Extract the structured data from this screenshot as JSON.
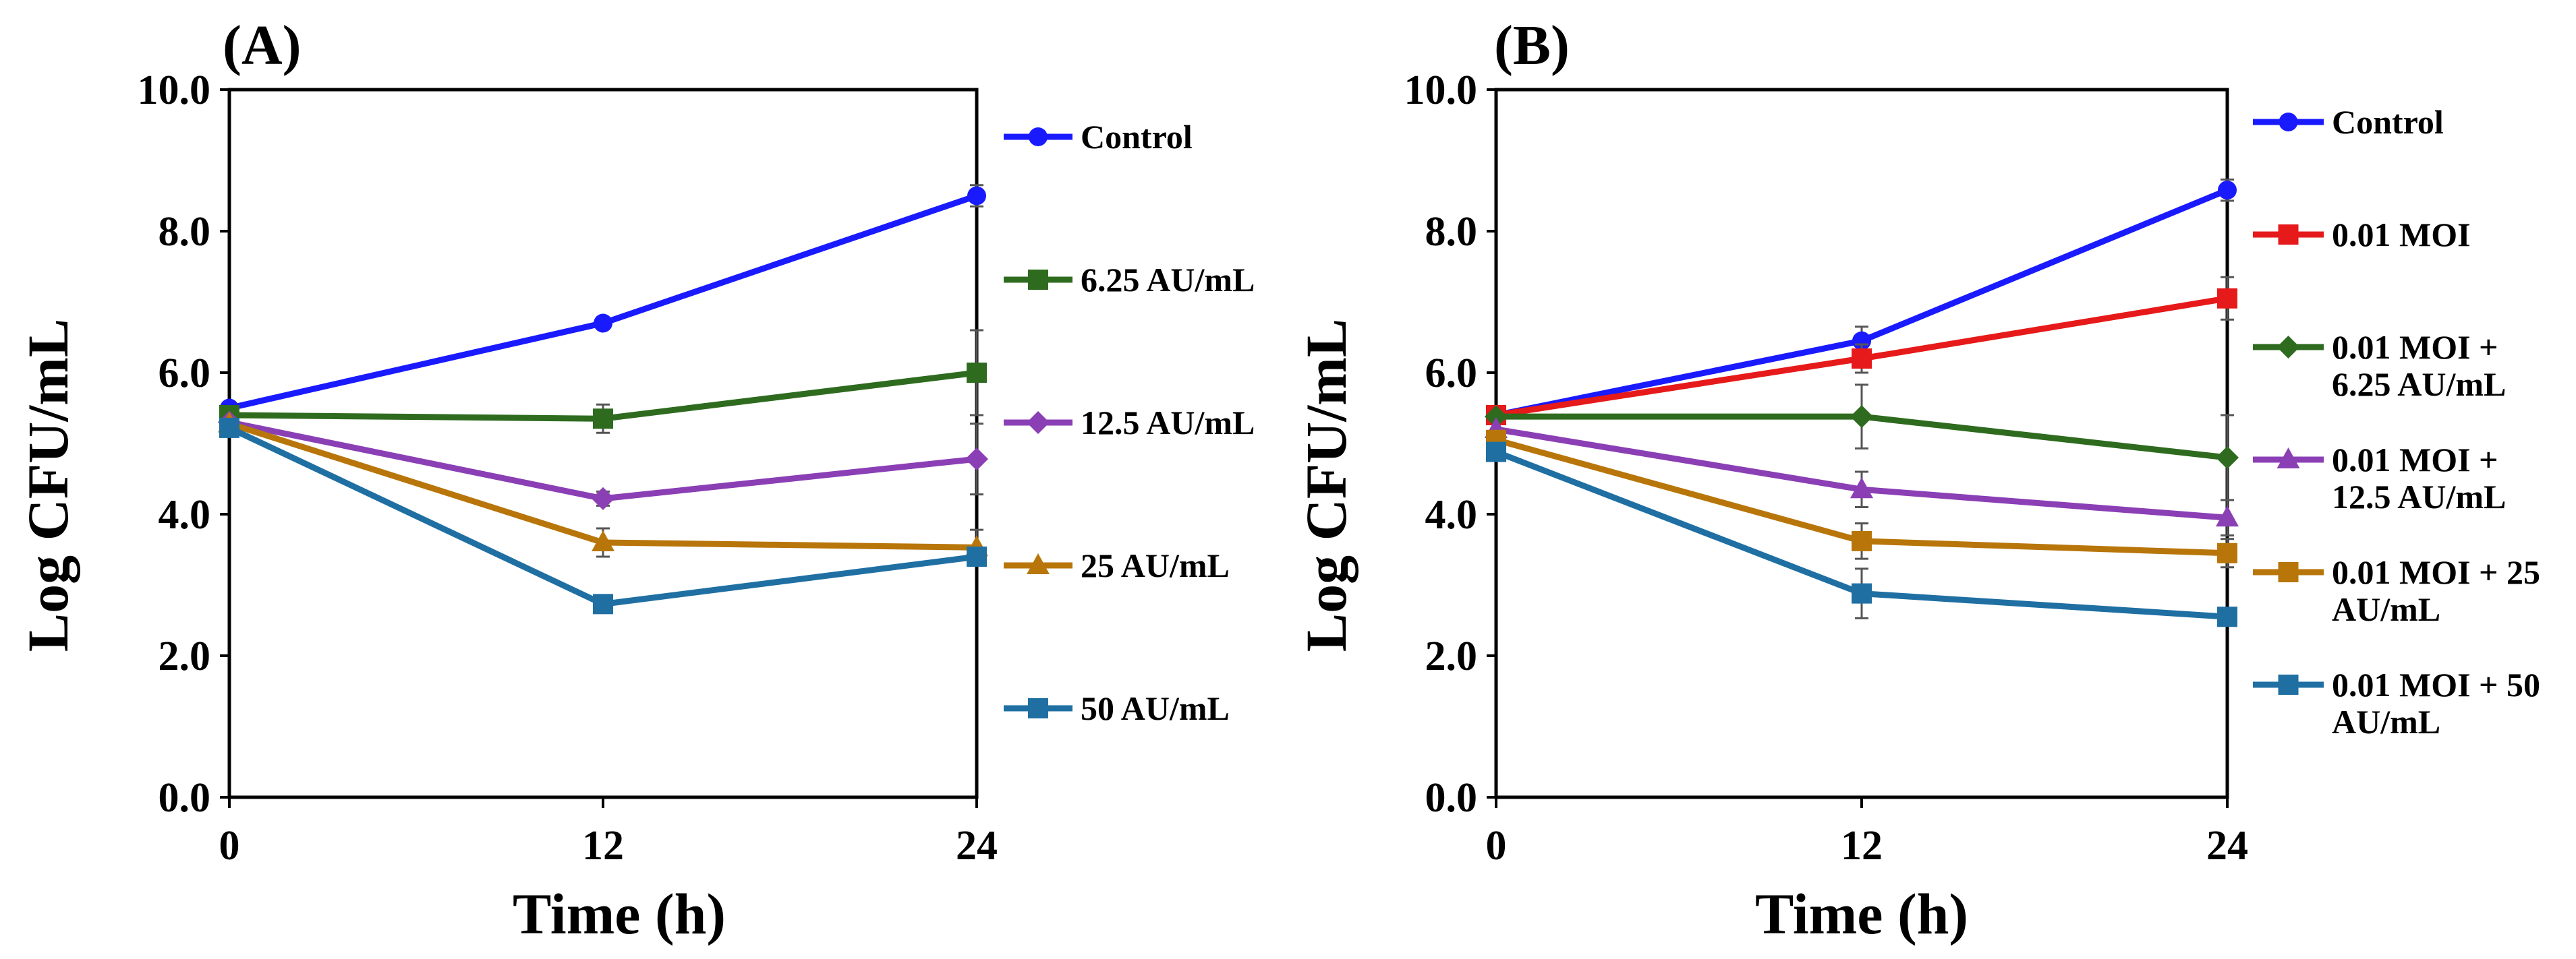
{
  "figure": {
    "panels": [
      "(A)",
      "(B)"
    ]
  },
  "chart_data": [
    {
      "type": "line",
      "panel_label": "(A)",
      "xlabel": "Time (h)",
      "ylabel": "Log CFU/mL",
      "x": [
        0,
        12,
        24
      ],
      "xticks": [
        "0",
        "12",
        "24"
      ],
      "yticks": [
        "0.0",
        "2.0",
        "4.0",
        "6.0",
        "8.0",
        "10.0"
      ],
      "ylim": [
        0,
        10
      ],
      "xlim": [
        0,
        24
      ],
      "grid": false,
      "legend_position": "right",
      "series": [
        {
          "name": "Control",
          "values": [
            5.5,
            6.7,
            8.5
          ],
          "err": [
            0.05,
            0.08,
            0.15
          ],
          "color": "#1a1aff",
          "marker": "circle"
        },
        {
          "name": "6.25 AU/mL",
          "values": [
            5.4,
            5.35,
            6.0
          ],
          "err": [
            0.05,
            0.2,
            0.6
          ],
          "color": "#2e6b1f",
          "marker": "square"
        },
        {
          "name": "12.5 AU/mL",
          "values": [
            5.3,
            4.22,
            4.78
          ],
          "err": [
            0.05,
            0.1,
            0.5
          ],
          "color": "#8b3fb5",
          "marker": "diamond"
        },
        {
          "name": "25 AU/mL",
          "values": [
            5.28,
            3.6,
            3.53
          ],
          "err": [
            0.05,
            0.2,
            0.25
          ],
          "color": "#b8760a",
          "marker": "triangle"
        },
        {
          "name": "50 AU/mL",
          "values": [
            5.22,
            2.73,
            3.4
          ],
          "err": [
            0.05,
            0.08,
            0.1
          ],
          "color": "#1f6fa3",
          "marker": "square"
        }
      ]
    },
    {
      "type": "line",
      "panel_label": "(B)",
      "xlabel": "Time (h)",
      "ylabel": "Log CFU/mL",
      "x": [
        0,
        12,
        24
      ],
      "xticks": [
        "0",
        "12",
        "24"
      ],
      "yticks": [
        "0.0",
        "2.0",
        "4.0",
        "6.0",
        "8.0",
        "10.0"
      ],
      "ylim": [
        0,
        10
      ],
      "xlim": [
        0,
        24
      ],
      "grid": false,
      "legend_position": "right",
      "series": [
        {
          "name": "Control",
          "legend_lines": [
            "Control"
          ],
          "values": [
            5.4,
            6.45,
            8.58
          ],
          "err": [
            0.05,
            0.2,
            0.15
          ],
          "color": "#1a1aff",
          "marker": "circle"
        },
        {
          "name": "0.01 MOI",
          "legend_lines": [
            "0.01 MOI"
          ],
          "values": [
            5.4,
            6.2,
            7.05
          ],
          "err": [
            0.05,
            0.2,
            0.3
          ],
          "color": "#e61a1a",
          "marker": "square"
        },
        {
          "name": "0.01 MOI + 6.25 AU/mL",
          "legend_lines": [
            "0.01 MOI +",
            "6.25 AU/mL"
          ],
          "values": [
            5.38,
            5.38,
            4.8
          ],
          "err": [
            0.05,
            0.45,
            0.6
          ],
          "color": "#2e6b1f",
          "marker": "diamond"
        },
        {
          "name": "0.01 MOI + 12.5 AU/mL",
          "legend_lines": [
            "0.01 MOI +",
            "12.5 AU/mL"
          ],
          "values": [
            5.2,
            4.35,
            3.95
          ],
          "err": [
            0.05,
            0.25,
            0.25
          ],
          "color": "#8b3fb5",
          "marker": "triangle"
        },
        {
          "name": "0.01 MOI + 25 AU/mL",
          "legend_lines": [
            "0.01 MOI + 25",
            "AU/mL"
          ],
          "values": [
            5.05,
            3.62,
            3.45
          ],
          "err": [
            0.05,
            0.25,
            0.2
          ],
          "color": "#b8760a",
          "marker": "square"
        },
        {
          "name": "0.01 MOI + 50 AU/mL",
          "legend_lines": [
            "0.01 MOI + 50",
            "AU/mL"
          ],
          "values": [
            4.88,
            2.88,
            2.55
          ],
          "err": [
            0.05,
            0.35,
            0.1
          ],
          "color": "#1f6fa3",
          "marker": "square"
        }
      ]
    }
  ]
}
